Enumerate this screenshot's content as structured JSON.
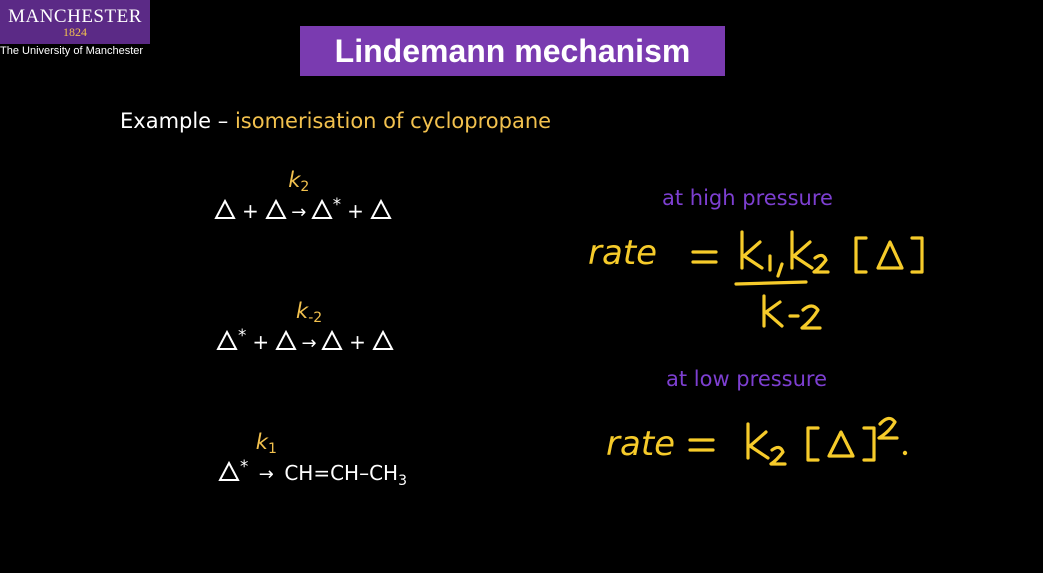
{
  "logo": {
    "main": "MANCHESTER",
    "year": "1824",
    "subtitle": "The University of Manchester"
  },
  "slide": {
    "title": "Lindemann mechanism",
    "example_prefix": "Example – ",
    "example_topic": "isomerisation of cyclopropane"
  },
  "reactions": [
    {
      "k_symbol": "k",
      "k_subscript": "2",
      "plus": "+",
      "star": "*"
    },
    {
      "k_symbol": "k",
      "k_subscript": "-2",
      "plus": "+",
      "star": "*"
    },
    {
      "k_symbol": "k",
      "k_subscript": "1",
      "star": "*",
      "product_main": "CH=CH–CH",
      "product_subscript": "3"
    }
  ],
  "conditions": {
    "high_pressure_label": "at high pressure",
    "low_pressure_label": "at low pressure"
  },
  "handwriting": {
    "high_rate": "rate = k1 k2 [Δ] / k-2",
    "low_rate": "rate = k2 [Δ]^2"
  },
  "colors": {
    "background": "#000000",
    "title_box": "#7a3bb0",
    "highlight": "#f2c14e",
    "condition_text": "#7d3fd1",
    "handwriting": "#f6cb2a"
  }
}
